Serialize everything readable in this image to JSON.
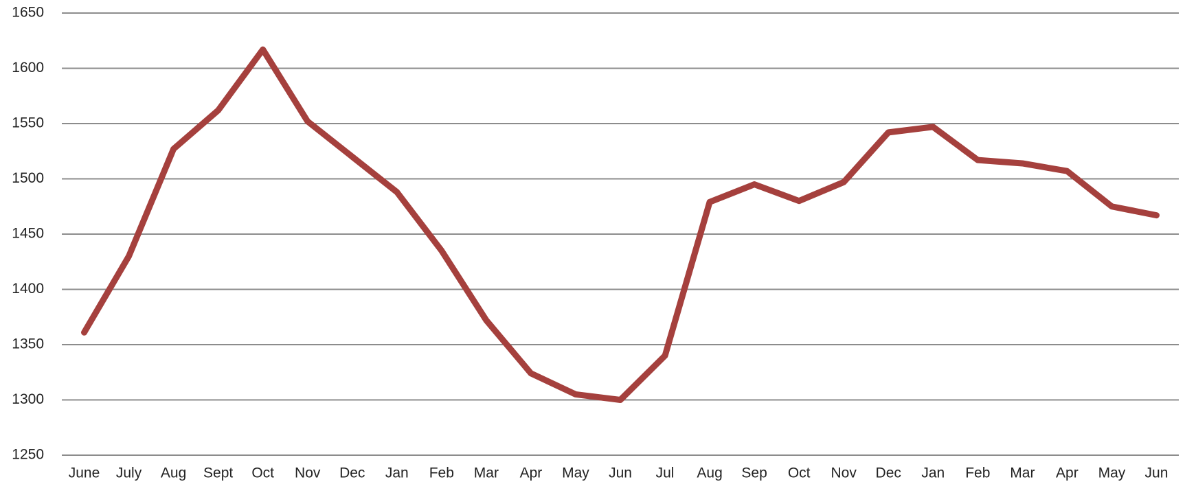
{
  "chart_data": {
    "type": "line",
    "categories": [
      "June",
      "July",
      "Aug",
      "Sept",
      "Oct",
      "Nov",
      "Dec",
      "Jan",
      "Feb",
      "Mar",
      "Apr",
      "May",
      "Jun",
      "Jul",
      "Aug",
      "Sep",
      "Oct",
      "Nov",
      "Dec",
      "Jan",
      "Feb",
      "Mar",
      "Apr",
      "May",
      "Jun"
    ],
    "values": [
      1361,
      1430,
      1527,
      1562,
      1617,
      1552,
      1520,
      1488,
      1435,
      1372,
      1324,
      1305,
      1300,
      1340,
      1479,
      1495,
      1480,
      1497,
      1542,
      1547,
      1517,
      1514,
      1507,
      1475,
      1467
    ],
    "color": "#a5403d",
    "ylim": [
      1250,
      1650
    ],
    "yticks": [
      1250,
      1300,
      1350,
      1400,
      1450,
      1500,
      1550,
      1600,
      1650
    ],
    "grid": true
  }
}
